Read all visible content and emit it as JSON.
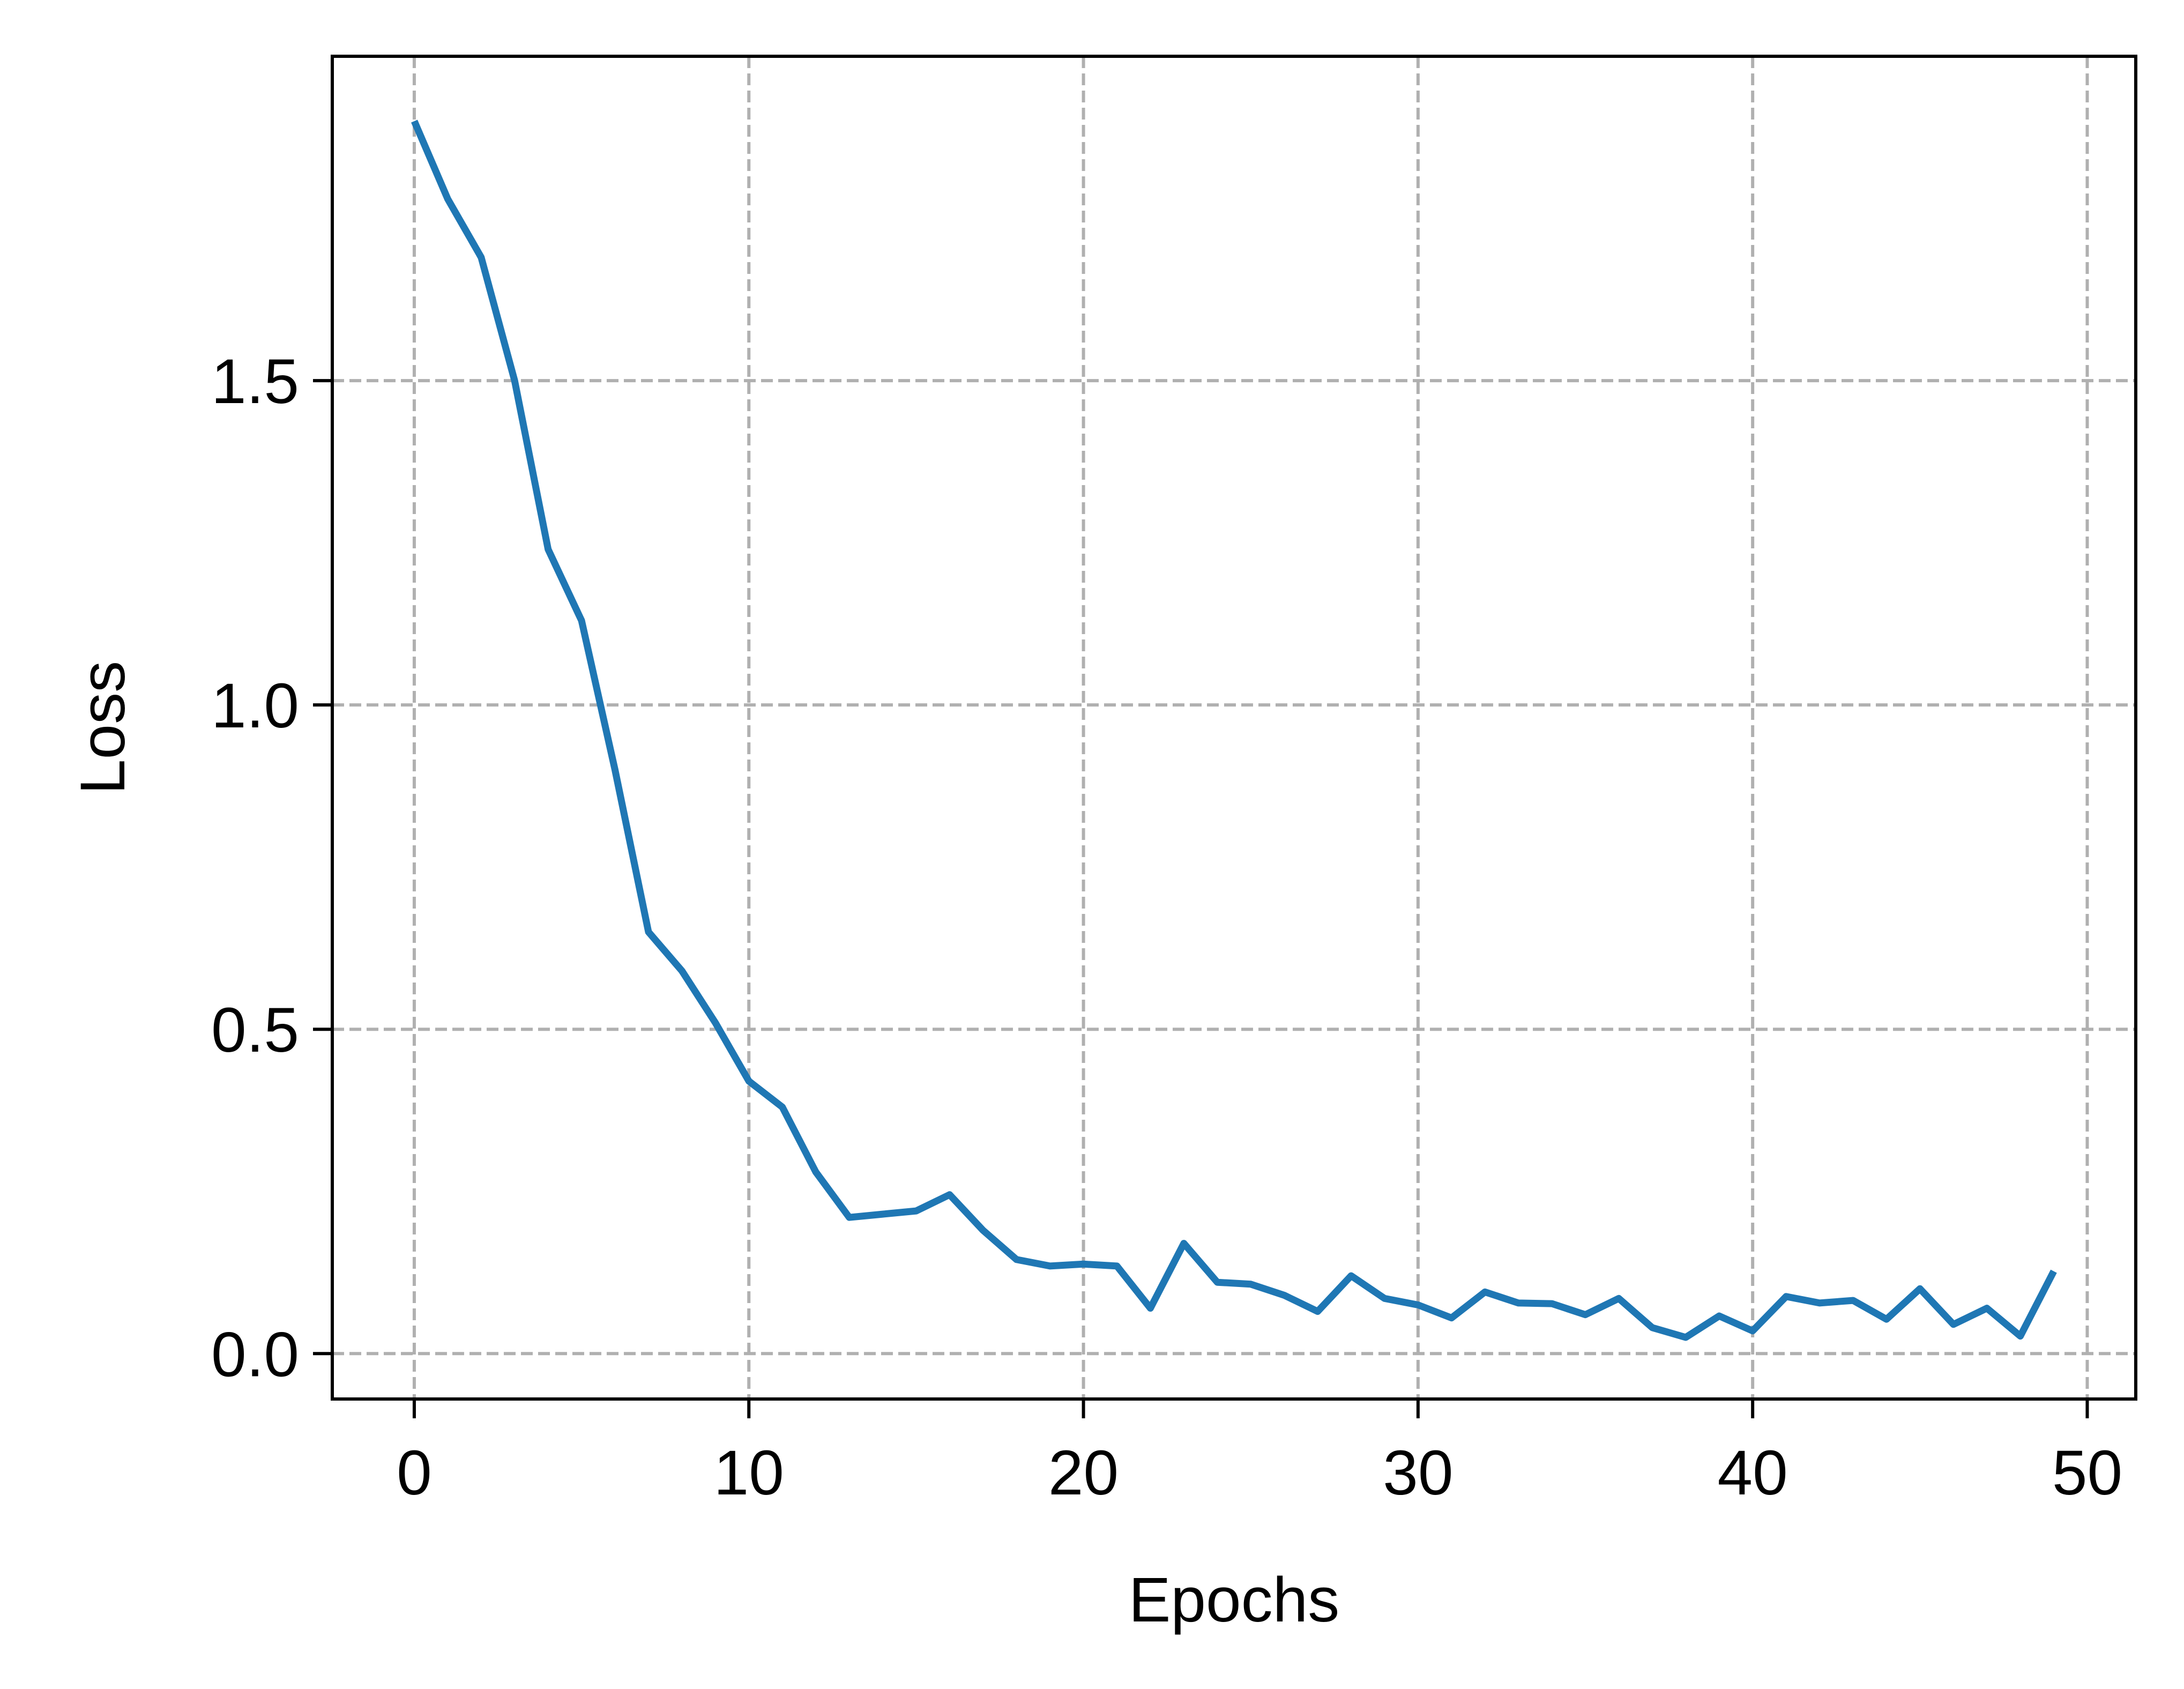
{
  "chart_data": {
    "type": "line",
    "title": "",
    "xlabel": "Epochs",
    "ylabel": "Loss",
    "xlim": [
      -2.45,
      51.45
    ],
    "ylim": [
      -0.07,
      2.0
    ],
    "xticks": [
      0,
      10,
      20,
      30,
      40,
      50
    ],
    "xtick_labels": [
      "0",
      "10",
      "20",
      "30",
      "40",
      "50"
    ],
    "yticks": [
      0.0,
      0.5,
      1.0,
      1.5
    ],
    "ytick_labels": [
      "0.0",
      "0.5",
      "1.0",
      "1.5"
    ],
    "grid": true,
    "grid_style": "dashed",
    "legend": "none",
    "colors": {
      "line": "#1f77b4",
      "grid": "#b0b0b0",
      "axes": "#000000"
    },
    "series": [
      {
        "x": [
          0,
          1,
          2,
          3,
          4,
          5,
          6,
          7,
          8,
          9,
          10,
          11,
          12,
          13,
          14,
          15,
          16,
          17,
          18,
          19,
          20,
          21,
          22,
          23,
          24,
          25,
          26,
          27,
          28,
          29,
          30,
          31,
          32,
          33,
          34,
          35,
          36,
          37,
          38,
          39,
          40,
          41,
          42,
          43,
          44,
          45,
          46,
          47,
          48,
          49
        ],
        "values": [
          1.9,
          1.78,
          1.69,
          1.5,
          1.24,
          1.13,
          0.9,
          0.65,
          0.59,
          0.51,
          0.42,
          0.38,
          0.28,
          0.21,
          0.215,
          0.22,
          0.245,
          0.19,
          0.145,
          0.135,
          0.138,
          0.135,
          0.07,
          0.17,
          0.11,
          0.107,
          0.09,
          0.065,
          0.12,
          0.085,
          0.075,
          0.055,
          0.095,
          0.078,
          0.077,
          0.06,
          0.085,
          0.04,
          0.025,
          0.058,
          0.035,
          0.088,
          0.078,
          0.082,
          0.053,
          0.1,
          0.045,
          0.07,
          0.027,
          0.127
        ]
      }
    ]
  }
}
